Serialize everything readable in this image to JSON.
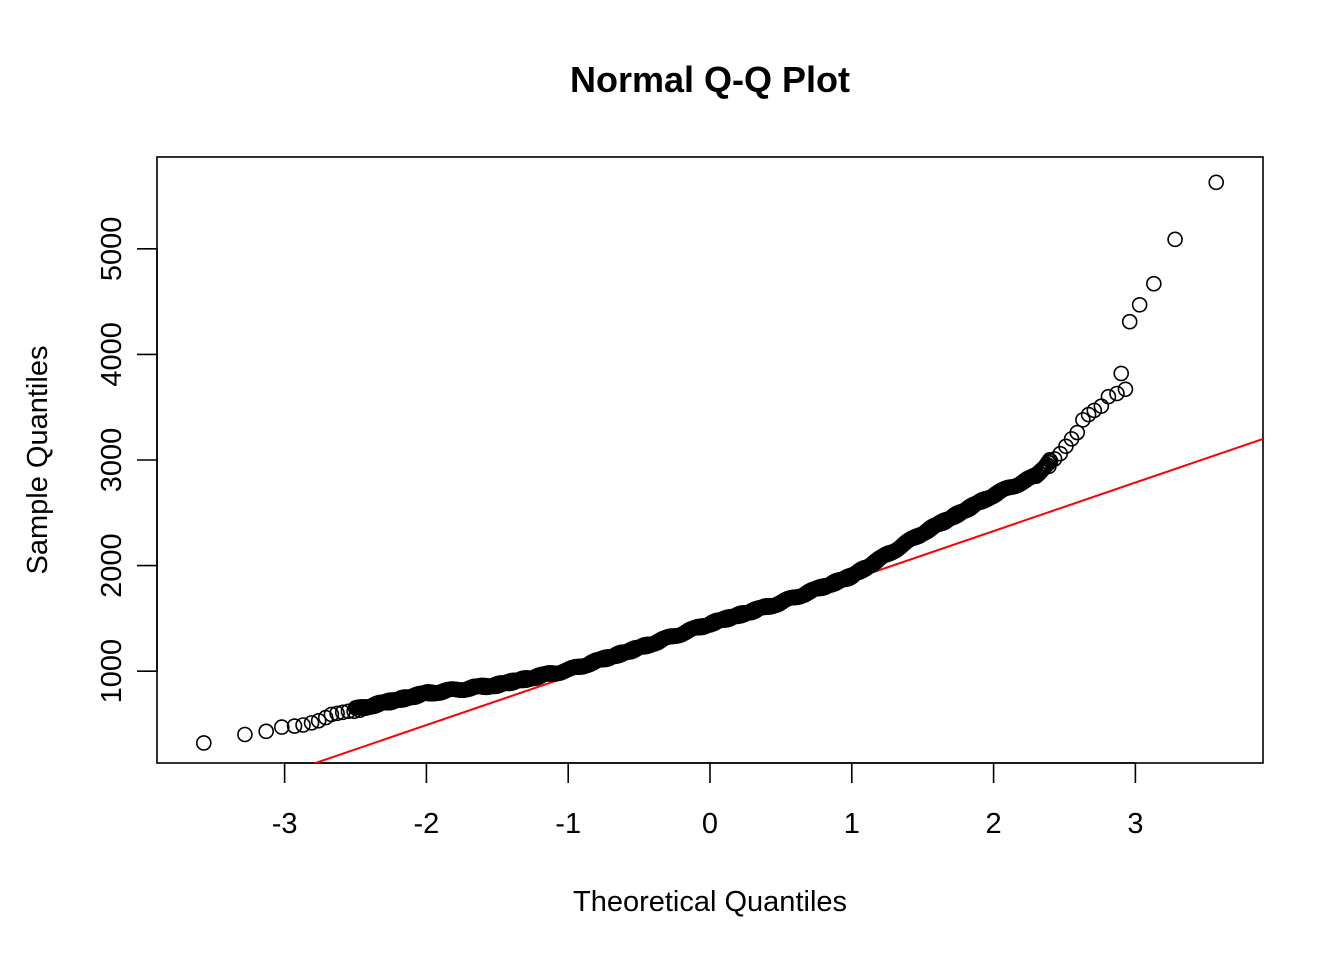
{
  "chart_data": {
    "type": "scatter",
    "title": "Normal Q-Q Plot",
    "xlabel": "Theoretical Quantiles",
    "ylabel": "Sample Quantiles",
    "xlim": [
      -3.9,
      3.9
    ],
    "ylim": [
      130,
      5870
    ],
    "x_ticks": [
      -3,
      -2,
      -1,
      0,
      1,
      2,
      3
    ],
    "x_tick_labels": [
      "-3",
      "-2",
      "-1",
      "0",
      "1",
      "2",
      "3"
    ],
    "y_ticks": [
      1000,
      2000,
      3000,
      4000,
      5000
    ],
    "y_tick_labels": [
      "1000",
      "2000",
      "3000",
      "4000",
      "5000"
    ],
    "grid": false,
    "legend": "none",
    "point_style": "open-circle",
    "point_color": "#000000",
    "reference_line": {
      "color": "#ff0000",
      "points": [
        [
          -3.0,
          30
        ],
        [
          3.9,
          3200
        ]
      ]
    },
    "sample_points": [
      [
        -3.57,
        320
      ],
      [
        -3.28,
        400
      ],
      [
        -3.13,
        430
      ],
      [
        -3.02,
        470
      ],
      [
        -2.93,
        480
      ],
      [
        -2.87,
        490
      ],
      [
        -2.81,
        510
      ],
      [
        -2.76,
        530
      ],
      [
        -2.71,
        560
      ],
      [
        -2.67,
        590
      ],
      [
        -2.63,
        600
      ],
      [
        -2.59,
        610
      ],
      [
        -2.55,
        620
      ],
      [
        -2.51,
        620
      ],
      [
        -2.47,
        630
      ],
      [
        -2.43,
        650
      ],
      [
        -2.39,
        670
      ],
      [
        -2.35,
        690
      ]
    ],
    "curve_knots": [
      [
        -2.5,
        640
      ],
      [
        -2.0,
        790
      ],
      [
        -1.5,
        870
      ],
      [
        -1.0,
        1010
      ],
      [
        -0.5,
        1220
      ],
      [
        0.0,
        1450
      ],
      [
        0.5,
        1650
      ],
      [
        1.0,
        1900
      ],
      [
        1.5,
        2310
      ],
      [
        2.0,
        2670
      ],
      [
        2.3,
        2850
      ],
      [
        2.4,
        3000
      ]
    ],
    "upper_points": [
      [
        2.39,
        2940
      ],
      [
        2.43,
        3010
      ],
      [
        2.47,
        3060
      ],
      [
        2.51,
        3130
      ],
      [
        2.55,
        3200
      ],
      [
        2.59,
        3260
      ],
      [
        2.63,
        3380
      ],
      [
        2.67,
        3430
      ],
      [
        2.71,
        3470
      ],
      [
        2.76,
        3510
      ],
      [
        2.81,
        3600
      ],
      [
        2.87,
        3630
      ],
      [
        2.93,
        3670
      ],
      [
        2.9,
        3820
      ],
      [
        2.96,
        4310
      ],
      [
        3.03,
        4470
      ],
      [
        3.13,
        4670
      ],
      [
        3.28,
        5090
      ],
      [
        3.57,
        5630
      ]
    ]
  }
}
